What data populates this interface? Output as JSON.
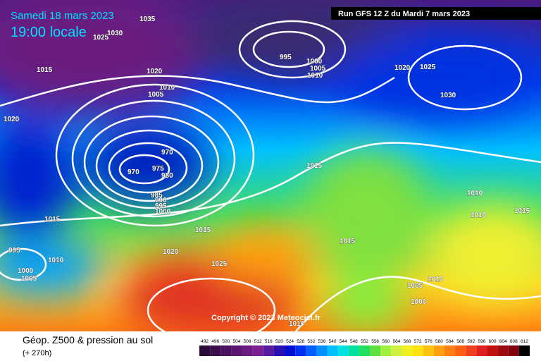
{
  "header": {
    "date": "Samedi 18 mars 2023",
    "time": "19:00 locale",
    "run": "Run GFS 12 Z du Mardi 7 mars 2023"
  },
  "isobars": [
    1035,
    1030,
    1025,
    1015,
    1020,
    1010,
    1005,
    995,
    1000,
    1005,
    1010,
    1020,
    1025,
    1030,
    1020,
    970,
    975,
    970,
    980,
    985,
    990,
    995,
    1000,
    1015,
    1010,
    1010,
    1015,
    1015,
    1015,
    1015,
    1020,
    995,
    1010,
    1025,
    1000,
    1005,
    1005,
    1010,
    1000,
    1010
  ],
  "copyright": "Copyright © 2023 Meteociel.fr",
  "footer": {
    "title": "Géop. Z500 & pression au sol",
    "lead": "(+ 270h)"
  },
  "colorbar": {
    "labels": [
      492,
      496,
      500,
      504,
      508,
      512,
      516,
      520,
      524,
      528,
      532,
      536,
      540,
      544,
      548,
      552,
      556,
      560,
      564,
      568,
      572,
      576,
      580,
      584,
      588,
      592,
      596,
      600,
      604,
      608,
      612
    ],
    "colors": [
      "#2b0b38",
      "#3b0f4a",
      "#4a1160",
      "#5a1670",
      "#6a1a80",
      "#7a2090",
      "#5a1aa0",
      "#2a10b0",
      "#0010d0",
      "#0030f0",
      "#0060ff",
      "#0090ff",
      "#00c0ff",
      "#00e0e0",
      "#00e0a0",
      "#20e060",
      "#60e040",
      "#a0f040",
      "#d0f040",
      "#f0f020",
      "#ffe010",
      "#ffc010",
      "#ffa010",
      "#ff8010",
      "#ff6010",
      "#f04020",
      "#e02020",
      "#c01010",
      "#a00810",
      "#800010",
      "#000000"
    ]
  }
}
